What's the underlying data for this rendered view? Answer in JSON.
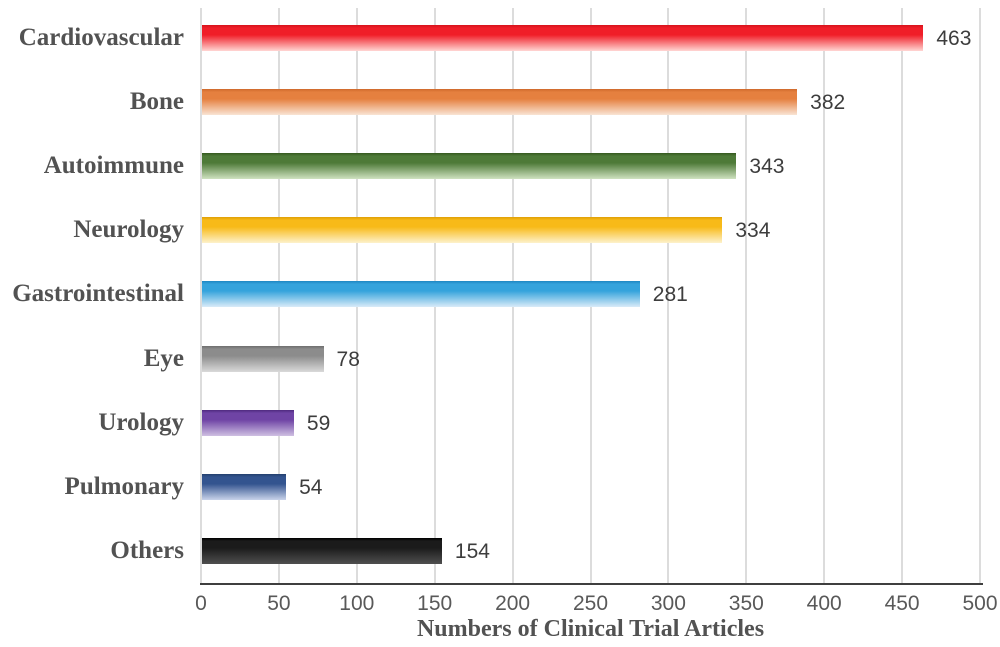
{
  "chart_data": {
    "type": "bar",
    "orientation": "horizontal",
    "title": "",
    "xlabel": "Numbers of Clinical Trial Articles",
    "ylabel": "",
    "xlim": [
      0,
      500
    ],
    "xticks": [
      0,
      50,
      100,
      150,
      200,
      250,
      300,
      350,
      400,
      450,
      500
    ],
    "grid": true,
    "legend": "none",
    "categories": [
      "Cardiovascular",
      "Bone",
      "Autoimmune",
      "Neurology",
      "Gastrointestinal",
      "Eye",
      "Urology",
      "Pulmonary",
      "Others"
    ],
    "values": [
      463,
      382,
      343,
      334,
      281,
      78,
      59,
      54,
      154
    ],
    "value_labels": [
      "463",
      "382",
      "343",
      "334",
      "281",
      "78",
      "59",
      "54",
      "154"
    ],
    "bar_gradients": [
      {
        "name": "red",
        "dark": "#d6121b",
        "main": "#f01e28",
        "light": "#ffd6d3"
      },
      {
        "name": "orange",
        "dark": "#cf6a2c",
        "main": "#e5803f",
        "light": "#f9e4d4"
      },
      {
        "name": "green",
        "dark": "#35591f",
        "main": "#4e7a38",
        "light": "#cfe2c0"
      },
      {
        "name": "gold",
        "dark": "#df9f06",
        "main": "#f8ba18",
        "light": "#fdf2cc"
      },
      {
        "name": "blue",
        "dark": "#1f86c2",
        "main": "#35a3dc",
        "light": "#d9ebf8"
      },
      {
        "name": "gray",
        "dark": "#6e6e6e",
        "main": "#8c8c8c",
        "light": "#d9d9d9"
      },
      {
        "name": "purple",
        "dark": "#4f2a7f",
        "main": "#6f44a5",
        "light": "#cfc0e2"
      },
      {
        "name": "navy",
        "dark": "#24406e",
        "main": "#33548f",
        "light": "#c9d3ea"
      },
      {
        "name": "black",
        "dark": "#000000",
        "main": "#1b1b1b",
        "light": "#4f4f4f"
      }
    ],
    "colors": {
      "background": "#ffffff",
      "gridline": "#dcdcdc",
      "axis_line": "#3f3f3f",
      "category_label": "#525252",
      "value_label": "#3d3d3d",
      "tick_label": "#595959",
      "axis_title": "#525252"
    }
  }
}
